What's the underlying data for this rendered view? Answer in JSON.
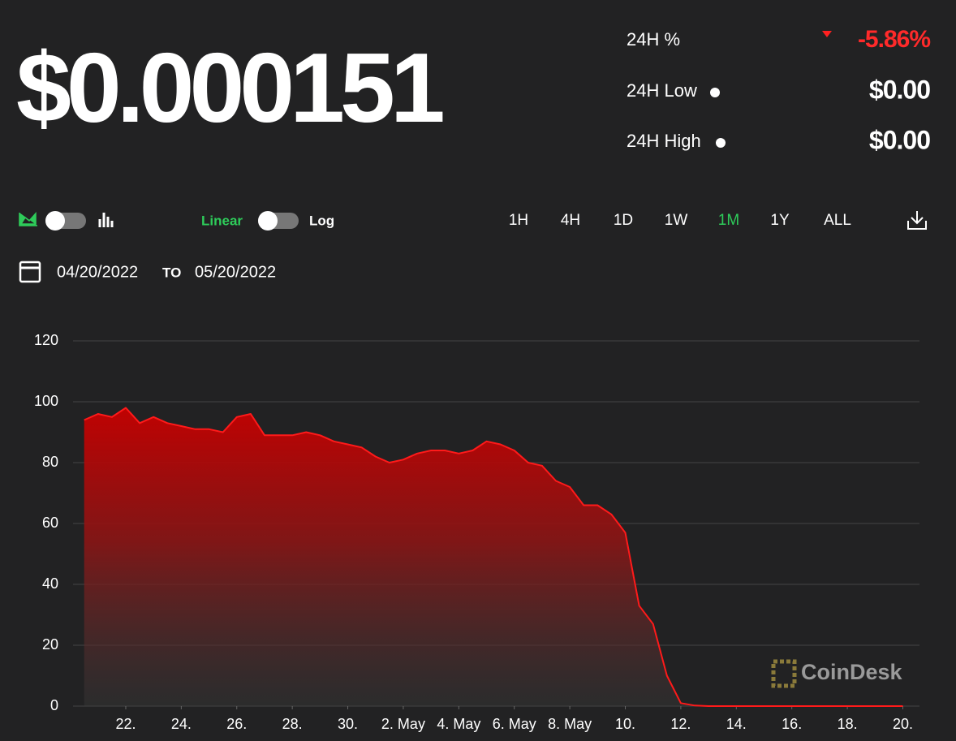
{
  "price": "$0.000151",
  "stats": [
    {
      "label": "24H %",
      "value": "-5.86%"
    },
    {
      "label": "24H Low",
      "value": "$0.00"
    },
    {
      "label": "24H High",
      "value": "$0.00"
    }
  ],
  "controls": {
    "linear": "Linear",
    "log": "Log",
    "ranges": [
      "1H",
      "4H",
      "1D",
      "1W",
      "1M",
      "1Y",
      "ALL"
    ],
    "active_range": "1M"
  },
  "dates": {
    "from": "04/20/2022",
    "to_label": "TO",
    "to": "05/20/2022"
  },
  "watermark": "CoinDesk",
  "chart_data": {
    "type": "area",
    "color": "#ff1a1a",
    "grid": true,
    "x": [
      0.5,
      1,
      1.5,
      2,
      2.5,
      3,
      3.5,
      4,
      4.5,
      5,
      5.5,
      6,
      6.5,
      7,
      7.5,
      8,
      8.5,
      9,
      9.5,
      10,
      10.5,
      11,
      11.5,
      12,
      12.5,
      13,
      13.5,
      14,
      14.5,
      15,
      15.5,
      16,
      16.5,
      17,
      17.5,
      18,
      18.5,
      19,
      19.5,
      20,
      20.5,
      21,
      21.5,
      22,
      22.5,
      23,
      23.5,
      24,
      24.5,
      25,
      25.5,
      26,
      26.5,
      27,
      27.5,
      28,
      28.5,
      29,
      29.5,
      30
    ],
    "values": [
      94,
      96,
      95,
      98,
      93,
      95,
      93,
      92,
      91,
      91,
      90,
      95,
      96,
      89,
      89,
      89,
      90,
      89,
      87,
      86,
      85,
      82,
      80,
      81,
      83,
      84,
      84,
      83,
      84,
      87,
      86,
      84,
      80,
      79,
      74,
      72,
      66,
      66,
      63,
      57,
      33,
      27,
      10,
      1,
      0.2,
      0,
      0,
      0,
      0,
      0,
      0,
      0,
      0,
      0,
      0,
      0,
      0,
      0,
      0,
      0
    ],
    "xlim": [
      0.1,
      30.6
    ],
    "ylim": [
      0,
      120
    ],
    "yticks": [
      0,
      20,
      40,
      60,
      80,
      100,
      120
    ],
    "xticks": [
      {
        "value": 2,
        "label": "22."
      },
      {
        "value": 4,
        "label": "24."
      },
      {
        "value": 6,
        "label": "26."
      },
      {
        "value": 8,
        "label": "28."
      },
      {
        "value": 10,
        "label": "30."
      },
      {
        "value": 12,
        "label": "2. May"
      },
      {
        "value": 14,
        "label": "4. May"
      },
      {
        "value": 16,
        "label": "6. May"
      },
      {
        "value": 18,
        "label": "8. May"
      },
      {
        "value": 20,
        "label": "10."
      },
      {
        "value": 22,
        "label": "12."
      },
      {
        "value": 24,
        "label": "14."
      },
      {
        "value": 26,
        "label": "16."
      },
      {
        "value": 28,
        "label": "18."
      },
      {
        "value": 30,
        "label": "20."
      }
    ]
  }
}
